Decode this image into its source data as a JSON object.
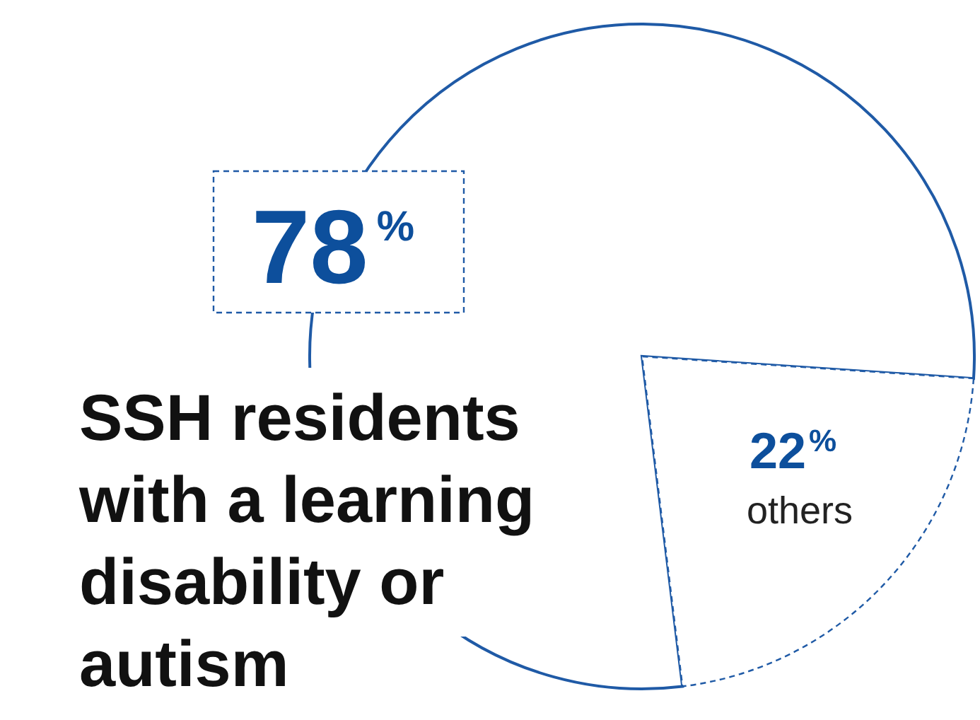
{
  "chart_data": {
    "type": "pie",
    "categories": [
      "SSH residents with a learning disability or autism",
      "others"
    ],
    "values": [
      78,
      22
    ],
    "value_labels": [
      "78%",
      "22%"
    ],
    "colors": [
      "#1f5aa6",
      "#1f5aa6"
    ]
  }
}
